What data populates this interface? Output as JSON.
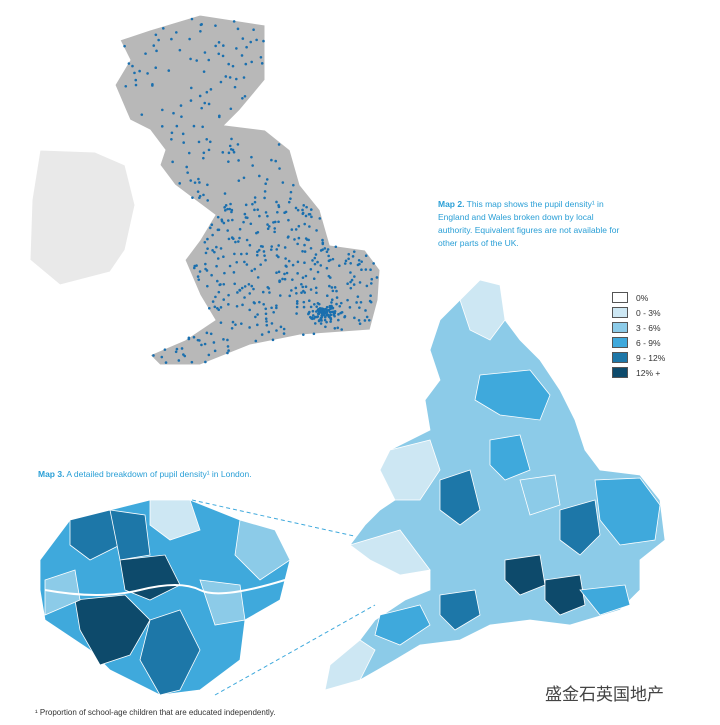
{
  "map2": {
    "label": "Map 2.",
    "caption": " This map shows the pupil density¹ in England and Wales broken down by local authority. Equivalent figures are not available for other parts of the UK."
  },
  "legend": {
    "items": [
      {
        "label": "0%",
        "color": "#ffffff"
      },
      {
        "label": "0 - 3%",
        "color": "#cde7f3"
      },
      {
        "label": "3 - 6%",
        "color": "#8ccbe8"
      },
      {
        "label": "6 - 9%",
        "color": "#3fa9dc"
      },
      {
        "label": "9 - 12%",
        "color": "#1d77a8"
      },
      {
        "label": "12% +",
        "color": "#0d4a6b"
      }
    ]
  },
  "map3": {
    "label": "Map 3.",
    "caption": " A detailed breakdown of pupil density¹ in London."
  },
  "footnote": "¹ Proportion of school-age children that are educated independently.",
  "watermark": "盛金石英国地产"
}
